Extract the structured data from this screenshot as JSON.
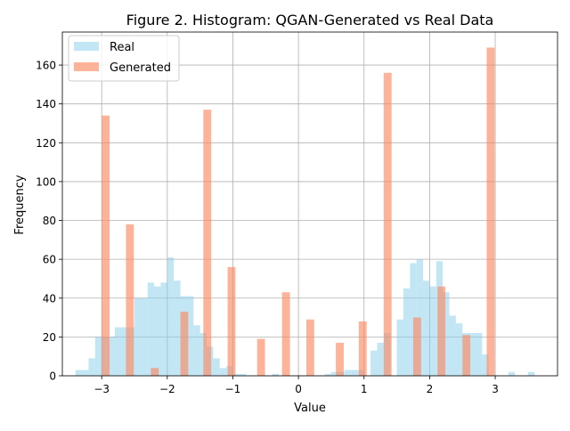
{
  "chart_data": {
    "type": "bar",
    "title": "Figure 2. Histogram: QGAN-Generated vs Real Data",
    "xlabel": "Value",
    "ylabel": "Frequency",
    "xlim": [
      -3.6,
      3.95
    ],
    "ylim": [
      0,
      177
    ],
    "x_ticks": [
      -3,
      -2,
      -1,
      0,
      1,
      2,
      3
    ],
    "x_tick_labels": [
      "−3",
      "−2",
      "−1",
      "0",
      "1",
      "2",
      "3"
    ],
    "y_ticks": [
      0,
      20,
      40,
      60,
      80,
      100,
      120,
      140,
      160
    ],
    "y_tick_labels": [
      "0",
      "20",
      "40",
      "60",
      "80",
      "100",
      "120",
      "140",
      "160"
    ],
    "grid": true,
    "legend_position": "top-left",
    "series": [
      {
        "name": "Real",
        "color": "#87ceeb",
        "opacity": 0.5,
        "bin_width": 0.1,
        "bins": [
          {
            "x0": -3.4,
            "count": 3
          },
          {
            "x0": -3.3,
            "count": 3
          },
          {
            "x0": -3.2,
            "count": 9
          },
          {
            "x0": -3.1,
            "count": 20
          },
          {
            "x0": -3.0,
            "count": 20
          },
          {
            "x0": -2.9,
            "count": 20
          },
          {
            "x0": -2.8,
            "count": 25
          },
          {
            "x0": -2.7,
            "count": 25
          },
          {
            "x0": -2.6,
            "count": 25
          },
          {
            "x0": -2.5,
            "count": 40
          },
          {
            "x0": -2.4,
            "count": 40
          },
          {
            "x0": -2.3,
            "count": 48
          },
          {
            "x0": -2.2,
            "count": 46
          },
          {
            "x0": -2.1,
            "count": 48
          },
          {
            "x0": -2.0,
            "count": 61
          },
          {
            "x0": -1.9,
            "count": 49
          },
          {
            "x0": -1.8,
            "count": 41
          },
          {
            "x0": -1.7,
            "count": 41
          },
          {
            "x0": -1.6,
            "count": 26
          },
          {
            "x0": -1.5,
            "count": 22
          },
          {
            "x0": -1.4,
            "count": 15
          },
          {
            "x0": -1.3,
            "count": 9
          },
          {
            "x0": -1.2,
            "count": 4
          },
          {
            "x0": -1.1,
            "count": 5
          },
          {
            "x0": -1.0,
            "count": 1
          },
          {
            "x0": -0.9,
            "count": 1
          },
          {
            "x0": -0.4,
            "count": 1
          },
          {
            "x0": 0.4,
            "count": 1
          },
          {
            "x0": 0.5,
            "count": 2
          },
          {
            "x0": 0.6,
            "count": 2
          },
          {
            "x0": 0.7,
            "count": 3
          },
          {
            "x0": 0.8,
            "count": 3
          },
          {
            "x0": 0.9,
            "count": 3
          },
          {
            "x0": 1.1,
            "count": 13
          },
          {
            "x0": 1.2,
            "count": 17
          },
          {
            "x0": 1.3,
            "count": 22
          },
          {
            "x0": 1.5,
            "count": 29
          },
          {
            "x0": 1.6,
            "count": 45
          },
          {
            "x0": 1.7,
            "count": 58
          },
          {
            "x0": 1.8,
            "count": 60
          },
          {
            "x0": 1.9,
            "count": 49
          },
          {
            "x0": 2.0,
            "count": 46
          },
          {
            "x0": 2.1,
            "count": 59
          },
          {
            "x0": 2.2,
            "count": 43
          },
          {
            "x0": 2.3,
            "count": 31
          },
          {
            "x0": 2.4,
            "count": 27
          },
          {
            "x0": 2.5,
            "count": 22
          },
          {
            "x0": 2.6,
            "count": 22
          },
          {
            "x0": 2.7,
            "count": 22
          },
          {
            "x0": 2.8,
            "count": 11
          },
          {
            "x0": 3.2,
            "count": 2
          },
          {
            "x0": 3.5,
            "count": 2
          }
        ]
      },
      {
        "name": "Generated",
        "color": "#fa8b62",
        "opacity": 0.65,
        "bin_width": 0.12,
        "bins": [
          {
            "x0": -3.0,
            "count": 134
          },
          {
            "x0": -2.63,
            "count": 78
          },
          {
            "x0": -2.25,
            "count": 4
          },
          {
            "x0": -1.8,
            "count": 33
          },
          {
            "x0": -1.45,
            "count": 137
          },
          {
            "x0": -1.08,
            "count": 56
          },
          {
            "x0": -0.63,
            "count": 19
          },
          {
            "x0": -0.25,
            "count": 43
          },
          {
            "x0": 0.12,
            "count": 29
          },
          {
            "x0": 0.57,
            "count": 17
          },
          {
            "x0": 0.92,
            "count": 28
          },
          {
            "x0": 1.3,
            "count": 156
          },
          {
            "x0": 1.75,
            "count": 30
          },
          {
            "x0": 2.12,
            "count": 46
          },
          {
            "x0": 2.5,
            "count": 21
          },
          {
            "x0": 2.87,
            "count": 169
          }
        ]
      }
    ]
  }
}
